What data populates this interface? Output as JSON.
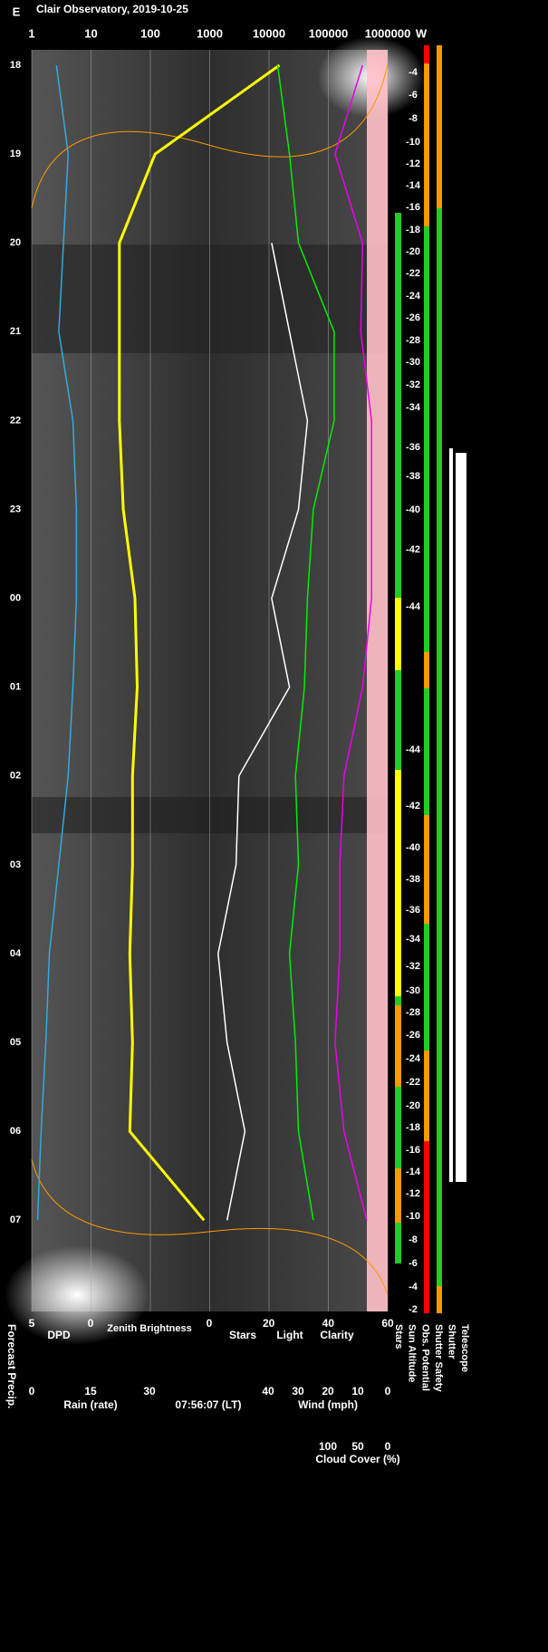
{
  "chart_data": {
    "type": "line",
    "title": "Clair Observatory, 2019-10-25",
    "east_label": "E",
    "west_label": "W",
    "categories": [
      "18",
      "19",
      "20",
      "21",
      "22",
      "23",
      "00",
      "01",
      "02",
      "03",
      "04",
      "05",
      "06",
      "07"
    ],
    "xscale": "log",
    "xlim": [
      1,
      1000000
    ],
    "xticks": [
      1,
      10,
      100,
      1000,
      10000,
      100000,
      1000000
    ],
    "grid": true,
    "series": [
      {
        "name": "DPD",
        "color": "#33aadd",
        "scale": "dpd",
        "values": [
          2.9,
          1.9,
          2.3,
          2.7,
          1.5,
          1.2,
          1.2,
          1.5,
          1.9,
          2.7,
          3.5,
          3.8,
          4.2,
          4.5
        ]
      },
      {
        "name": "Zenith Brightness",
        "color": "#ffff00",
        "scale": "log",
        "values": [
          15000,
          120,
          30,
          30,
          30,
          35,
          55,
          60,
          50,
          50,
          45,
          50,
          45,
          800
        ]
      },
      {
        "name": "Stars",
        "color": "#ffffff",
        "scale": "sky",
        "values": [
          null,
          null,
          21,
          27,
          33,
          30,
          21,
          27,
          10,
          9,
          3,
          6,
          12,
          6
        ]
      },
      {
        "name": "Clarity",
        "color": "#00ee00",
        "scale": "sky",
        "values": [
          23,
          27,
          30,
          42,
          42,
          35,
          33,
          32,
          29,
          30,
          27,
          29,
          30,
          35
        ]
      },
      {
        "name": "Cloud Cover (%)",
        "color": "#ee00ee",
        "scale": "cloud",
        "values": [
          42,
          88,
          42,
          45,
          27,
          27,
          27,
          42,
          73,
          80,
          80,
          88,
          73,
          35
        ]
      }
    ],
    "scales": {
      "dpd": {
        "xlim": [
          5,
          0
        ],
        "xticks": [
          5,
          0
        ]
      },
      "rain": {
        "label": "Rain (rate)",
        "xlim": [
          0,
          30
        ],
        "xticks": [
          0,
          15,
          30
        ]
      },
      "sky": {
        "light_label": "Light",
        "xlim": [
          0,
          60
        ],
        "xticks": [
          0,
          20,
          40,
          60
        ]
      },
      "wind": {
        "label": "Wind (mph)",
        "xlim": [
          40,
          0
        ],
        "xticks": [
          40,
          30,
          20,
          10,
          0
        ]
      },
      "cloud": {
        "xlim": [
          100,
          0
        ],
        "xticks": [
          100,
          50,
          0
        ]
      }
    },
    "time_label": "07:56:07 (LT)",
    "left_label": "Forecast Precip.",
    "right_labels": [
      "Stars",
      "Sun Altitude",
      "Obs. Potential",
      "Shutter Safety",
      "Shutter",
      "Telescope"
    ],
    "sun_altitude_ticks": [
      -4,
      -6,
      -8,
      -10,
      -12,
      -14,
      -16,
      -18,
      -20,
      -22,
      -24,
      -26,
      -28,
      -30,
      -32,
      -34,
      -36,
      -38,
      -40,
      -42,
      -44,
      -44,
      -42,
      -40,
      -38,
      -36,
      -34,
      -32,
      -30,
      -28,
      -26,
      -24,
      -22,
      -20,
      -18,
      -16,
      -14,
      -12,
      -10,
      -8,
      -6,
      -4,
      -2
    ]
  }
}
